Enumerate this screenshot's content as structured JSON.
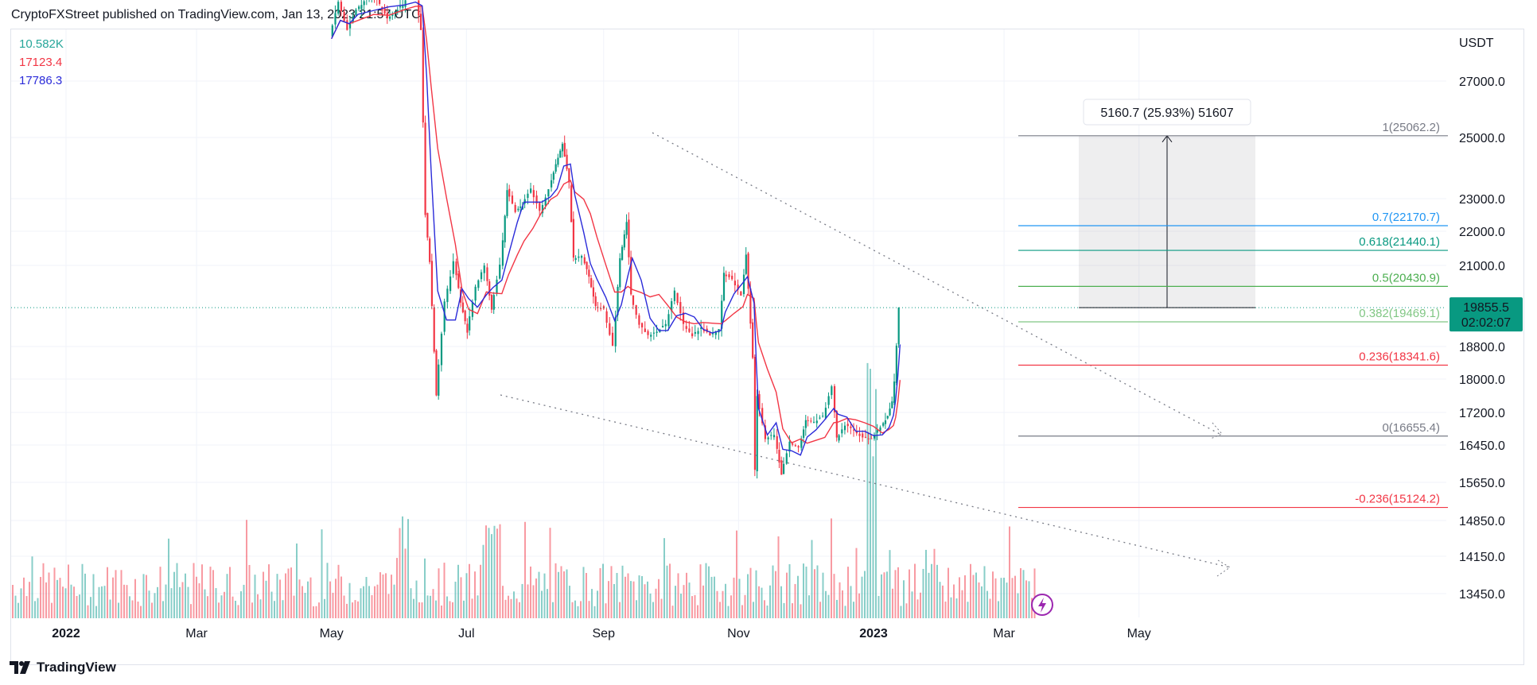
{
  "header": {
    "text": "CryptoFXStreet published on TradingView.com, Jan 13, 2023 21:57 UTC"
  },
  "legend": [
    {
      "value": "10.582K",
      "color": "#26a69a"
    },
    {
      "value": "17123.4",
      "color": "#f23645"
    },
    {
      "value": "17786.3",
      "color": "#2b2bd9"
    }
  ],
  "footer": {
    "brand": "TradingView"
  },
  "chart_data": {
    "type": "candlestick",
    "currency_label": "USDT",
    "y_ticks": [
      "27000.0",
      "25000.0",
      "23000.0",
      "22000.0",
      "21000.0",
      "18800.0",
      "18000.0",
      "17200.0",
      "16450.0",
      "15650.0",
      "14850.0",
      "14150.0",
      "13450.0"
    ],
    "x_ticks": [
      "2022",
      "Mar",
      "May",
      "Jul",
      "Sep",
      "Nov",
      "2023",
      "Mar",
      "May"
    ],
    "price_label": {
      "price": "19855.5",
      "countdown": "02:02:07",
      "color": "#089981"
    },
    "measure_label": "5160.7 (25.93%) 51607",
    "fib_levels": [
      {
        "ratio": "1",
        "price": "25062.2",
        "label": "1(25062.2)",
        "color": "#787b86"
      },
      {
        "ratio": "0.7",
        "price": "22170.7",
        "label": "0.7(22170.7)",
        "color": "#2196f3"
      },
      {
        "ratio": "0.618",
        "price": "21440.1",
        "label": "0.618(21440.1)",
        "color": "#089981"
      },
      {
        "ratio": "0.5",
        "price": "20430.9",
        "label": "0.5(20430.9)",
        "color": "#4caf50"
      },
      {
        "ratio": "0.382",
        "price": "19469.1",
        "label": "0.382(19469.1)",
        "color": "#81c784"
      },
      {
        "ratio": "0.236",
        "price": "18341.6",
        "label": "0.236(18341.6)",
        "color": "#f23645"
      },
      {
        "ratio": "0",
        "price": "16655.4",
        "label": "0(16655.4)",
        "color": "#787b86"
      },
      {
        "ratio": "-0.236",
        "price": "15124.2",
        "label": "-0.236(15124.2)",
        "color": "#f23645"
      }
    ],
    "series": [
      {
        "name": "price",
        "values": [
          {
            "d": "2022-05-01",
            "c": 28500
          },
          {
            "d": "2022-05-05",
            "c": 29800
          },
          {
            "d": "2022-05-09",
            "c": 28800
          },
          {
            "d": "2022-05-13",
            "c": 29500
          },
          {
            "d": "2022-05-20",
            "c": 30200
          },
          {
            "d": "2022-05-27",
            "c": 29200
          },
          {
            "d": "2022-06-03",
            "c": 29700
          },
          {
            "d": "2022-06-08",
            "c": 30500
          },
          {
            "d": "2022-06-11",
            "c": 28800
          },
          {
            "d": "2022-06-13",
            "c": 22500
          },
          {
            "d": "2022-06-15",
            "c": 21100
          },
          {
            "d": "2022-06-18",
            "c": 17600
          },
          {
            "d": "2022-06-22",
            "c": 20000
          },
          {
            "d": "2022-06-26",
            "c": 21100
          },
          {
            "d": "2022-06-29",
            "c": 20000
          },
          {
            "d": "2022-07-02",
            "c": 19200
          },
          {
            "d": "2022-07-06",
            "c": 20400
          },
          {
            "d": "2022-07-10",
            "c": 21000
          },
          {
            "d": "2022-07-13",
            "c": 19800
          },
          {
            "d": "2022-07-17",
            "c": 21000
          },
          {
            "d": "2022-07-20",
            "c": 23300
          },
          {
            "d": "2022-07-24",
            "c": 22600
          },
          {
            "d": "2022-07-27",
            "c": 22800
          },
          {
            "d": "2022-07-31",
            "c": 23300
          },
          {
            "d": "2022-08-04",
            "c": 22600
          },
          {
            "d": "2022-08-08",
            "c": 23300
          },
          {
            "d": "2022-08-11",
            "c": 24100
          },
          {
            "d": "2022-08-14",
            "c": 24800
          },
          {
            "d": "2022-08-17",
            "c": 23500
          },
          {
            "d": "2022-08-19",
            "c": 21200
          },
          {
            "d": "2022-08-23",
            "c": 21300
          },
          {
            "d": "2022-08-26",
            "c": 20700
          },
          {
            "d": "2022-08-29",
            "c": 19900
          },
          {
            "d": "2022-09-02",
            "c": 19800
          },
          {
            "d": "2022-09-06",
            "c": 18800
          },
          {
            "d": "2022-09-09",
            "c": 21200
          },
          {
            "d": "2022-09-12",
            "c": 22300
          },
          {
            "d": "2022-09-14",
            "c": 20200
          },
          {
            "d": "2022-09-18",
            "c": 19400
          },
          {
            "d": "2022-09-22",
            "c": 19100
          },
          {
            "d": "2022-09-26",
            "c": 19200
          },
          {
            "d": "2022-09-30",
            "c": 19400
          },
          {
            "d": "2022-10-04",
            "c": 20300
          },
          {
            "d": "2022-10-08",
            "c": 19400
          },
          {
            "d": "2022-10-12",
            "c": 19100
          },
          {
            "d": "2022-10-16",
            "c": 19300
          },
          {
            "d": "2022-10-20",
            "c": 19100
          },
          {
            "d": "2022-10-24",
            "c": 19300
          },
          {
            "d": "2022-10-26",
            "c": 20800
          },
          {
            "d": "2022-10-30",
            "c": 20600
          },
          {
            "d": "2022-11-03",
            "c": 20200
          },
          {
            "d": "2022-11-05",
            "c": 21300
          },
          {
            "d": "2022-11-08",
            "c": 18500
          },
          {
            "d": "2022-11-09",
            "c": 15900
          },
          {
            "d": "2022-11-10",
            "c": 17600
          },
          {
            "d": "2022-11-14",
            "c": 16600
          },
          {
            "d": "2022-11-18",
            "c": 16700
          },
          {
            "d": "2022-11-21",
            "c": 15800
          },
          {
            "d": "2022-11-25",
            "c": 16500
          },
          {
            "d": "2022-11-29",
            "c": 16400
          },
          {
            "d": "2022-12-02",
            "c": 17000
          },
          {
            "d": "2022-12-06",
            "c": 17000
          },
          {
            "d": "2022-12-10",
            "c": 17100
          },
          {
            "d": "2022-12-14",
            "c": 17800
          },
          {
            "d": "2022-12-16",
            "c": 16600
          },
          {
            "d": "2022-12-20",
            "c": 16900
          },
          {
            "d": "2022-12-24",
            "c": 16800
          },
          {
            "d": "2022-12-28",
            "c": 16600
          },
          {
            "d": "2023-01-01",
            "c": 16600
          },
          {
            "d": "2023-01-05",
            "c": 16850
          },
          {
            "d": "2023-01-08",
            "c": 17100
          },
          {
            "d": "2023-01-10",
            "c": 17450
          },
          {
            "d": "2023-01-11",
            "c": 17950
          },
          {
            "d": "2023-01-12",
            "c": 18850
          },
          {
            "d": "2023-01-13",
            "c": 19855.5
          }
        ]
      }
    ]
  }
}
